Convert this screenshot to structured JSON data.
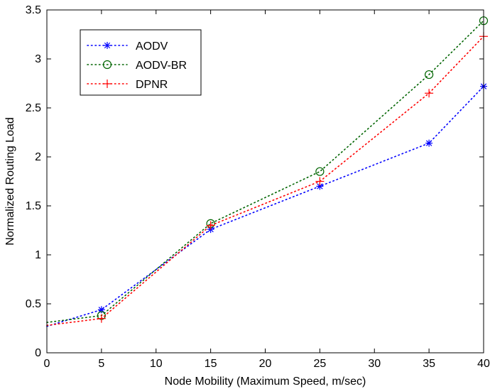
{
  "chart_data": {
    "type": "line",
    "title": "",
    "xlabel": "Node Mobility (Maximum Speed, m/sec)",
    "ylabel": "Normalized Routing Load",
    "xlim": [
      0,
      40
    ],
    "ylim": [
      0,
      3.5
    ],
    "xticks": [
      0,
      5,
      10,
      15,
      20,
      25,
      30,
      35,
      40
    ],
    "yticks": [
      0,
      0.5,
      1,
      1.5,
      2,
      2.5,
      3,
      3.5
    ],
    "xtick_labels": [
      "0",
      "5",
      "10",
      "15",
      "20",
      "25",
      "30",
      "35",
      "40"
    ],
    "ytick_labels": [
      "0",
      "0.5",
      "1",
      "1.5",
      "2",
      "2.5",
      "3",
      "3.5"
    ],
    "grid": false,
    "legend_position": "top-left",
    "series": [
      {
        "name": "AODV",
        "color": "#0000ff",
        "marker": "asterisk",
        "line_style": "dotted",
        "x": [
          0,
          5,
          15,
          25,
          35,
          40
        ],
        "y": [
          0.27,
          0.44,
          1.26,
          1.7,
          2.14,
          2.72
        ]
      },
      {
        "name": "AODV-BR",
        "color": "#006400",
        "marker": "circle",
        "line_style": "dotted",
        "x": [
          0,
          5,
          15,
          25,
          35,
          40
        ],
        "y": [
          0.31,
          0.38,
          1.32,
          1.85,
          2.84,
          3.39
        ]
      },
      {
        "name": "DPNR",
        "color": "#ff0000",
        "marker": "plus",
        "line_style": "dotted",
        "x": [
          0,
          5,
          15,
          25,
          35,
          40
        ],
        "y": [
          0.28,
          0.35,
          1.3,
          1.75,
          2.65,
          3.23
        ]
      }
    ]
  }
}
